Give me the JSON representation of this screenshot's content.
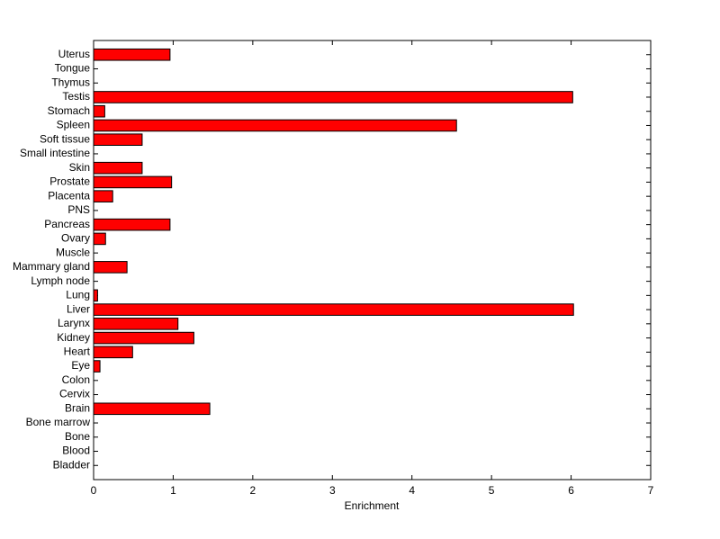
{
  "chart_data": {
    "type": "barh",
    "x_label": "Enrichment",
    "categories": [
      "Bladder",
      "Blood",
      "Bone",
      "Bone marrow",
      "Brain",
      "Cervix",
      "Colon",
      "Eye",
      "Heart",
      "Kidney",
      "Larynx",
      "Liver",
      "Lung",
      "Lymph node",
      "Mammary gland",
      "Muscle",
      "Ovary",
      "Pancreas",
      "PNS",
      "Placenta",
      "Prostate",
      "Skin",
      "Small intestine",
      "Soft tissue",
      "Spleen",
      "Stomach",
      "Testis",
      "Thymus",
      "Tongue",
      "Uterus"
    ],
    "values": [
      0,
      0,
      0,
      0,
      1.46,
      0,
      0,
      0.08,
      0.49,
      1.26,
      1.06,
      6.03,
      0.05,
      0,
      0.42,
      0,
      0.15,
      0.96,
      0,
      0.24,
      0.98,
      0.61,
      0,
      0.61,
      4.56,
      0.14,
      6.02,
      0,
      0,
      0.96
    ],
    "color": "#ff0000",
    "xlim": [
      0,
      7
    ],
    "xticks": [
      0,
      1,
      2,
      3,
      4,
      5,
      6,
      7
    ]
  }
}
